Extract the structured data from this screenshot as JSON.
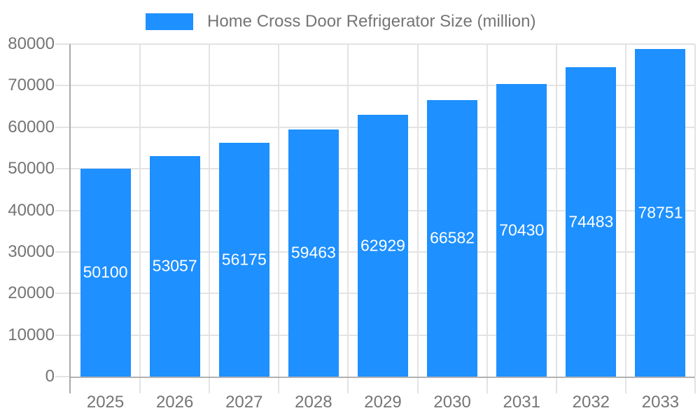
{
  "chart_data": {
    "type": "bar",
    "title": "",
    "categories": [
      "2025",
      "2026",
      "2027",
      "2028",
      "2029",
      "2030",
      "2031",
      "2032",
      "2033"
    ],
    "series": [
      {
        "name": "Home Cross Door Refrigerator Size (million)",
        "values": [
          50100,
          53057,
          56175,
          59463,
          62929,
          66582,
          70430,
          74483,
          78751
        ]
      }
    ],
    "xlabel": "",
    "ylabel": "",
    "ylim": [
      0,
      80000
    ],
    "yticks": [
      0,
      10000,
      20000,
      30000,
      40000,
      50000,
      60000,
      70000,
      80000
    ],
    "grid": true,
    "legend_position": "top-center",
    "value_labels": "inside-center",
    "bar_color": "#1E90FF",
    "value_label_color": "#FFFFFF",
    "axis_text_color": "#757575",
    "grid_color": "#E3E3E3",
    "axis_line_color": "#A9A9A9",
    "baseline_color": "#B2B2B2",
    "background_color": "#FFFFFF"
  }
}
